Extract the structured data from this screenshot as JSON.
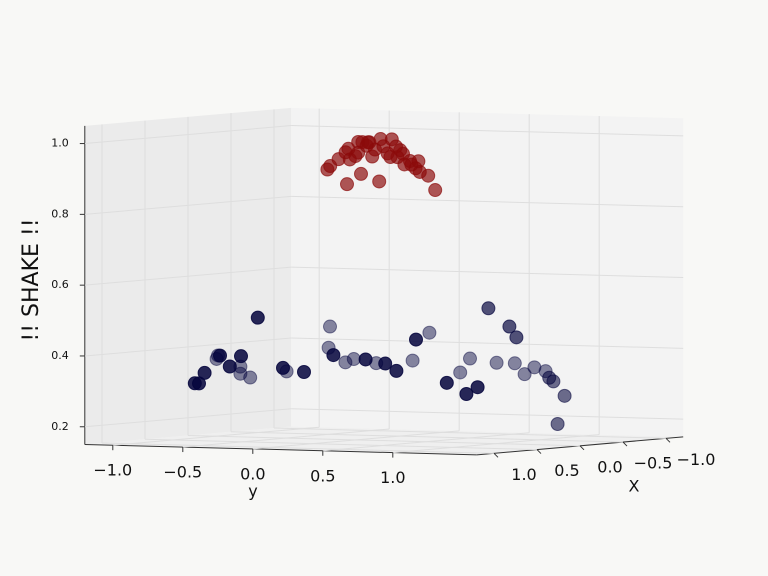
{
  "chart_data": {
    "type": "scatter3d",
    "annotation": "!! SHAKE !!",
    "annotation_color": "#22dd22",
    "xlabel": "X",
    "ylabel": "y",
    "xlim": [
      -1.2,
      1.2
    ],
    "ylim": [
      -1.2,
      1.6
    ],
    "zlim": [
      0.15,
      1.05
    ],
    "xticks": [
      {
        "value": 1.0,
        "label": "1.0"
      },
      0.5,
      {
        "value": 0.0,
        "label": "0.0"
      },
      {
        "value": -0.5,
        "label": "−0.5"
      },
      {
        "value": -1.0,
        "label": "−1.0"
      }
    ],
    "yticks": [
      {
        "value": -1.0,
        "label": "−1.0"
      },
      {
        "value": -0.5,
        "label": "−0.5"
      },
      {
        "value": 0.0,
        "label": "0.0"
      },
      0.5,
      {
        "value": 1.0,
        "label": "1.0"
      }
    ],
    "zticks": [
      0.2,
      0.4,
      0.6,
      0.8,
      {
        "value": 1.0,
        "label": "1.0"
      }
    ],
    "grid": true,
    "series": [
      {
        "color": "#8b0a0a",
        "x": [
          0.3,
          0.3,
          0.3,
          0.3,
          0.3,
          0.3,
          0.3,
          0.3,
          0.3,
          0.3,
          0.3,
          0.3,
          0.3,
          0.3,
          0.3,
          0.3,
          0.3,
          0.3,
          0.3,
          0.3,
          0.3,
          0.3,
          0.3,
          0.3,
          0.3,
          0.3,
          0.3,
          0.3,
          0.3,
          0.3,
          0.3,
          0.3,
          0.3,
          0.3,
          0.3
        ],
        "y": [
          -0.02,
          0.0,
          0.06,
          0.11,
          0.13,
          0.14,
          0.18,
          0.2,
          0.23,
          0.26,
          0.27,
          0.3,
          0.32,
          0.36,
          0.38,
          0.41,
          0.44,
          0.47,
          0.5,
          0.52,
          0.53,
          0.57,
          0.61,
          0.63,
          0.64,
          0.7,
          0.75,
          0.12,
          0.22,
          0.35,
          0.2,
          0.28,
          0.48,
          0.58,
          0.43
        ],
        "z": [
          0.92,
          0.93,
          0.95,
          0.97,
          0.98,
          0.95,
          0.96,
          1.0,
          1.0,
          0.99,
          1.0,
          0.96,
          0.98,
          1.01,
          0.99,
          0.97,
          1.01,
          0.99,
          0.98,
          0.97,
          0.94,
          0.95,
          0.93,
          0.95,
          0.92,
          0.91,
          0.87,
          0.88,
          0.91,
          0.89,
          0.97,
          1.0,
          0.96,
          0.94,
          0.96
        ]
      },
      {
        "color": "#05053d",
        "x": [
          0.8,
          0.8,
          0.8,
          0.8,
          0.8,
          0.8,
          0.8,
          0.8,
          0.8,
          0.8,
          0.8,
          0.8,
          0.8,
          0.8,
          0.8,
          0.8,
          0.8,
          0.3,
          0.3,
          0.3,
          0,
          0,
          0,
          0,
          -0.3,
          -0.3,
          -0.3,
          -0.3,
          -0.3,
          -0.3,
          -0.3,
          -0.3,
          -0.3,
          -0.3,
          -0.3,
          -0.3,
          -0.3,
          -0.3,
          -0.3,
          -0.3,
          -0.3,
          -0.3,
          -0.3,
          -0.3
        ],
        "y": [
          -0.66,
          -0.63,
          -0.59,
          -0.48,
          -0.41,
          -0.33,
          -0.21,
          -0.03,
          0.12,
          0.33,
          0.56,
          0.7,
          0.78,
          0.92,
          1.14,
          1.28,
          1.36,
          1.13,
          1.28,
          1.33,
          1.38,
          1.41,
          1.49,
          1.44,
          -1.18,
          -1.17,
          -1.01,
          -1.01,
          -0.94,
          -0.68,
          -0.37,
          -0.38,
          -0.26,
          -0.2,
          -0.04,
          0.22,
          0.34,
          0.56,
          0.63,
          0.82,
          0.95,
          1.02,
          1.09,
          1.17
        ],
        "z": [
          0.32,
          0.32,
          0.35,
          0.4,
          0.37,
          0.4,
          0.51,
          0.37,
          0.36,
          0.41,
          0.4,
          0.39,
          0.37,
          0.46,
          0.34,
          0.31,
          0.33,
          0.54,
          0.49,
          0.46,
          0.34,
          0.33,
          0.29,
          0.21,
          0.36,
          0.37,
          0.34,
          0.32,
          0.31,
          0.33,
          0.46,
          0.4,
          0.36,
          0.37,
          0.36,
          0.37,
          0.45,
          0.34,
          0.38,
          0.37,
          0.37,
          0.34,
          0.36,
          0.35
        ]
      }
    ]
  }
}
